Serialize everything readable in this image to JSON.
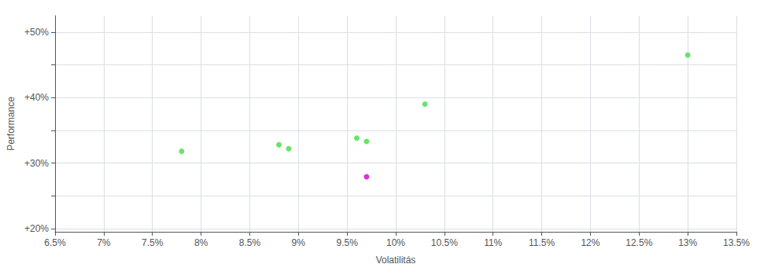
{
  "chart_data": {
    "type": "scatter",
    "xlabel": "Volatilitás",
    "ylabel": "Performance",
    "xlim": [
      0.065,
      0.135
    ],
    "ylim": [
      0.195,
      0.525
    ],
    "xticks": [
      {
        "value": 0.065,
        "label": "6.5%"
      },
      {
        "value": 0.07,
        "label": "7%"
      },
      {
        "value": 0.075,
        "label": "7.5%"
      },
      {
        "value": 0.08,
        "label": "8%"
      },
      {
        "value": 0.085,
        "label": "8.5%"
      },
      {
        "value": 0.09,
        "label": "9%"
      },
      {
        "value": 0.095,
        "label": "9.5%"
      },
      {
        "value": 0.1,
        "label": "10%"
      },
      {
        "value": 0.105,
        "label": "10.5%"
      },
      {
        "value": 0.11,
        "label": "11%"
      },
      {
        "value": 0.115,
        "label": "11.5%"
      },
      {
        "value": 0.12,
        "label": "12%"
      },
      {
        "value": 0.125,
        "label": "12.5%"
      },
      {
        "value": 0.13,
        "label": "13%"
      },
      {
        "value": 0.135,
        "label": "13.5%"
      }
    ],
    "yticks": [
      {
        "value": 0.2,
        "label": "+20%"
      },
      {
        "value": 0.25,
        "label": null
      },
      {
        "value": 0.3,
        "label": "+30%"
      },
      {
        "value": 0.35,
        "label": null
      },
      {
        "value": 0.4,
        "label": "+40%"
      },
      {
        "value": 0.45,
        "label": null
      },
      {
        "value": 0.5,
        "label": "+50%"
      }
    ],
    "grid": true,
    "marker": "circle",
    "series": [
      {
        "color": "#44dd44",
        "x": [
          0.078,
          0.088,
          0.089,
          0.096,
          0.097,
          0.103,
          0.13
        ],
        "values": [
          0.318,
          0.328,
          0.322,
          0.338,
          0.333,
          0.39,
          0.465
        ]
      },
      {
        "color": "#cc00cc",
        "x": [
          0.097
        ],
        "values": [
          0.279
        ]
      }
    ]
  }
}
